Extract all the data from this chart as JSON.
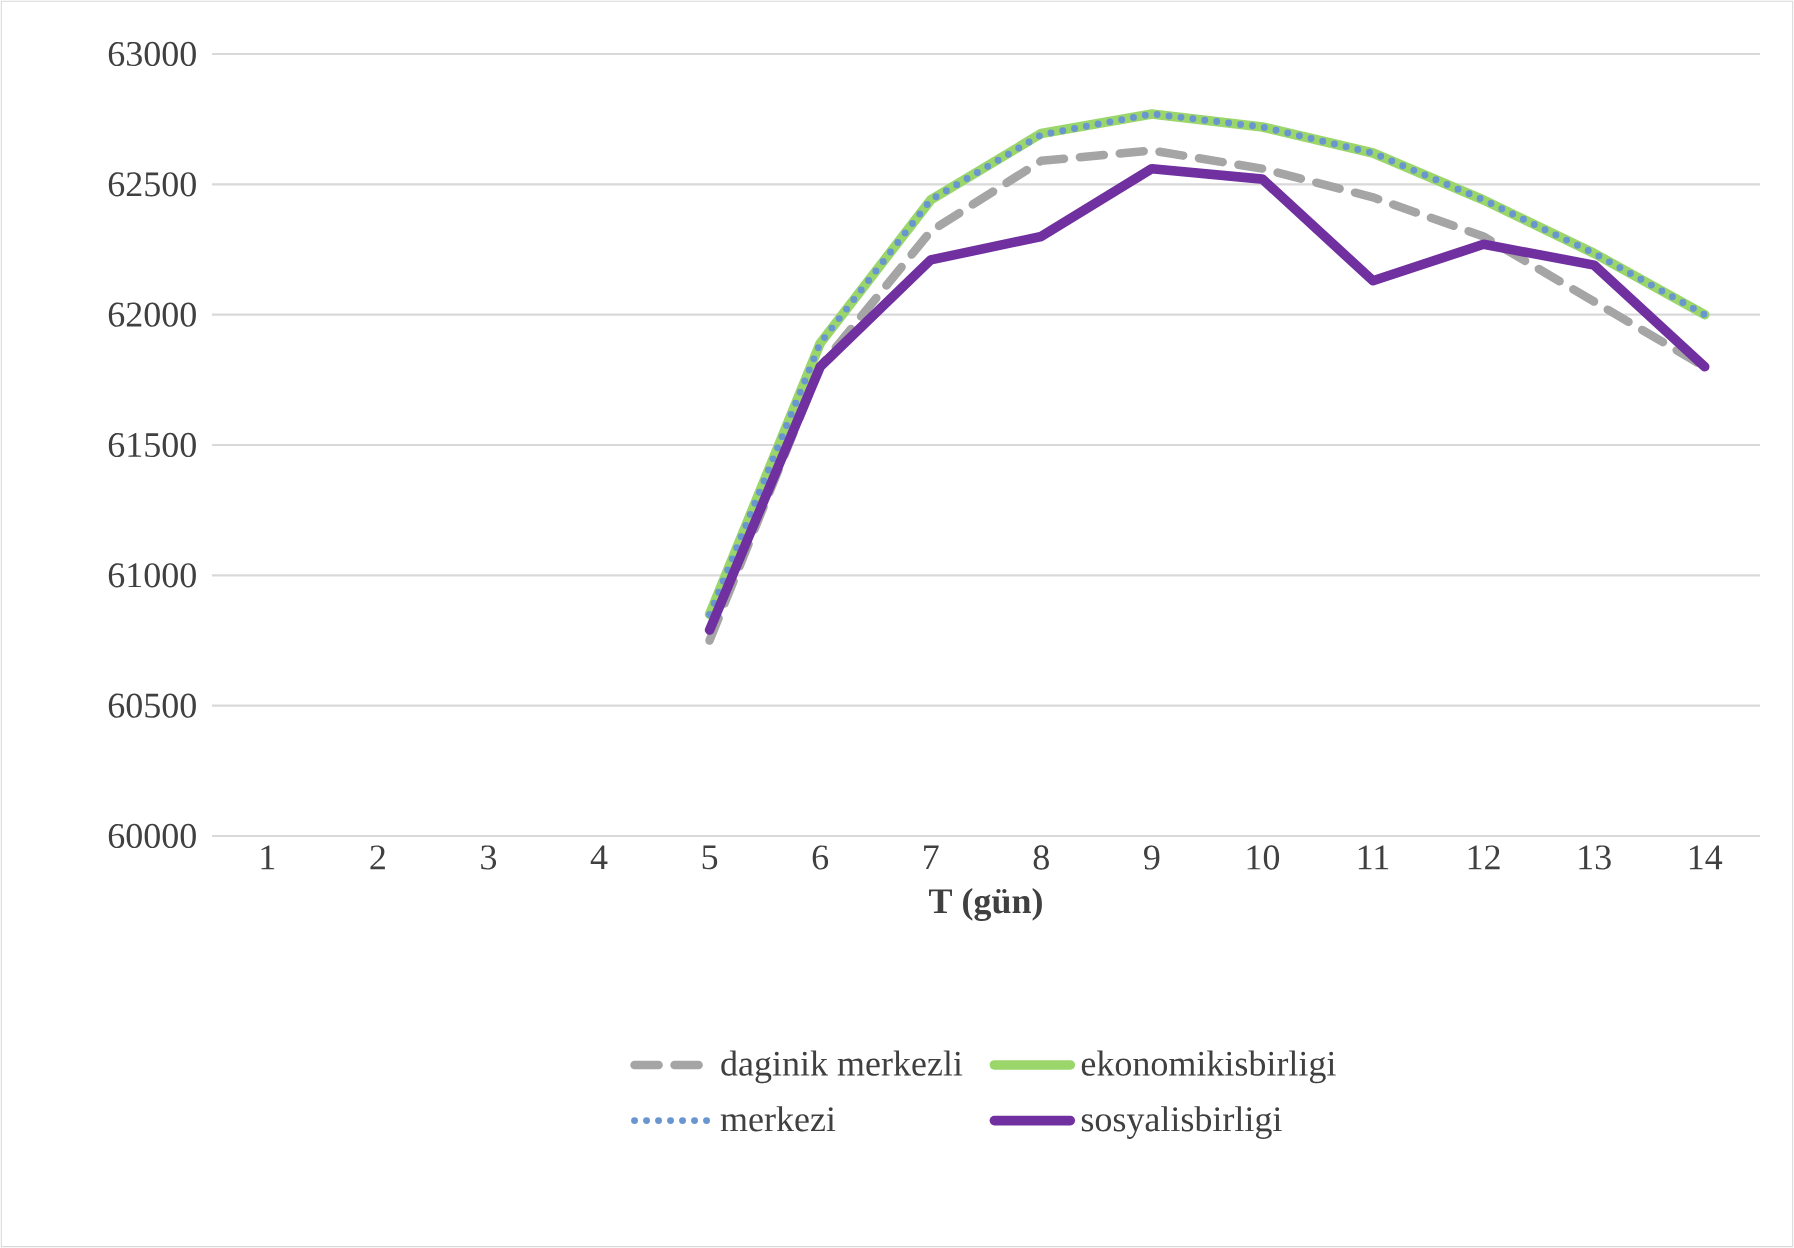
{
  "chart_data": {
    "type": "line",
    "xlabel": "T (gün)",
    "categories": [
      "1",
      "2",
      "3",
      "4",
      "5",
      "6",
      "7",
      "8",
      "9",
      "10",
      "11",
      "12",
      "13",
      "14"
    ],
    "series": [
      {
        "name": "daginik merkezli",
        "color": "#a5a5a5",
        "line_style": "dashed",
        "values": [
          null,
          null,
          null,
          null,
          60750,
          61800,
          62320,
          62590,
          62630,
          62560,
          62450,
          62300,
          62050,
          61800
        ]
      },
      {
        "name": "ekonomikisbirligi",
        "color": "#9bd66a",
        "line_style": "solid",
        "values": [
          null,
          null,
          null,
          null,
          60850,
          61890,
          62440,
          62695,
          62770,
          62720,
          62620,
          62440,
          62235,
          62000
        ]
      },
      {
        "name": "merkezi",
        "color": "#6a96d0",
        "line_style": "dotted",
        "values": [
          null,
          null,
          null,
          null,
          60850,
          61890,
          62440,
          62690,
          62770,
          62720,
          62620,
          62440,
          62235,
          62000
        ]
      },
      {
        "name": "sosyalisbirligi",
        "color": "#7030a0",
        "line_style": "solid",
        "values": [
          null,
          null,
          null,
          null,
          60790,
          61800,
          62210,
          62300,
          62560,
          62520,
          62130,
          62270,
          62190,
          61800
        ]
      }
    ],
    "ylim": [
      60000,
      63000
    ],
    "yticks": [
      60000,
      60500,
      61000,
      61500,
      62000,
      62500,
      63000
    ],
    "grid": "y",
    "legend": "bottom",
    "marker": "none"
  }
}
